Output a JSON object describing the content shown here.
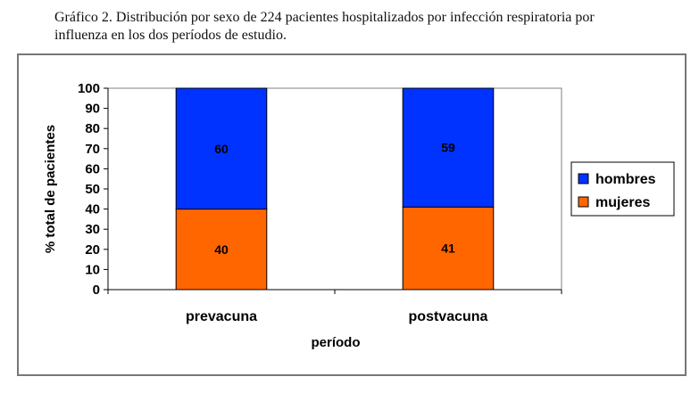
{
  "caption": "Gráfico 2. Distribución por sexo de 224 pacientes hospitalizados por infección respiratoria por influenza en los dos períodos de estudio.",
  "chart_data": {
    "type": "bar",
    "stacked": true,
    "categories": [
      "prevacuna",
      "postvacuna"
    ],
    "series": [
      {
        "name": "mujeres",
        "values": [
          40,
          41
        ],
        "color": "#FF6600"
      },
      {
        "name": "hombres",
        "values": [
          60,
          59
        ],
        "color": "#0033FF"
      }
    ],
    "xlabel": "período",
    "ylabel": "% total de pacientes",
    "ylim": [
      0,
      100
    ],
    "yticks": [
      0,
      10,
      20,
      30,
      40,
      50,
      60,
      70,
      80,
      90,
      100
    ],
    "legend_position": "right",
    "grid": false,
    "legend": [
      {
        "name": "hombres",
        "color": "#0033FF"
      },
      {
        "name": "mujeres",
        "color": "#FF6600"
      }
    ]
  }
}
